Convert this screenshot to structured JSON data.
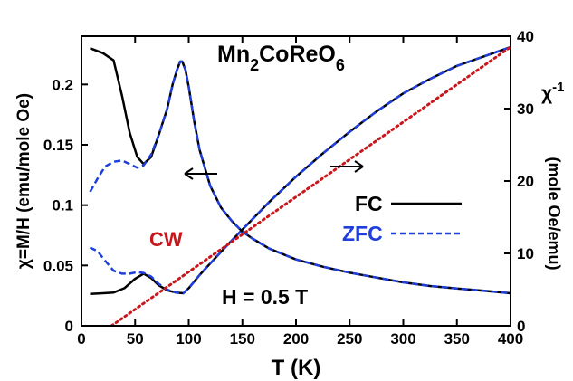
{
  "chart_data": {
    "type": "line",
    "title": "Mn",
    "title_sub1": "2",
    "title_mid": "CoReO",
    "title_sub2": "6",
    "xlabel": "T (K)",
    "ylabel_left": "χ=M/H (emu/mole Oe)",
    "ylabel_right_symbol": "χ",
    "ylabel_right_exp": "-1",
    "ylabel_right_units": "(mole Oe/emu)",
    "xlim": [
      0,
      400
    ],
    "ylim_left": [
      0,
      0.24
    ],
    "ylim_right": [
      0,
      40
    ],
    "x_ticks": [
      "0",
      "50",
      "100",
      "150",
      "200",
      "250",
      "300",
      "350",
      "400"
    ],
    "y_left_ticks": [
      "0",
      "0.05",
      "0.1",
      "0.15",
      "0.2"
    ],
    "y_right_ticks": [
      "0",
      "10",
      "20",
      "30",
      "40"
    ],
    "annotations": {
      "field": "H = 0.5 T",
      "cw": "CW"
    },
    "legend": {
      "position": "right",
      "items": [
        {
          "label": "FC",
          "color": "#000000",
          "dash": "solid"
        },
        {
          "label": "ZFC",
          "color": "#1f3fdc",
          "dash": "dashed"
        }
      ]
    },
    "series": [
      {
        "name": "FC",
        "axis": "left",
        "color": "#000000",
        "style": "solid",
        "x": [
          8,
          20,
          30,
          38,
          45,
          52,
          58,
          65,
          72,
          80,
          85,
          89,
          92,
          94,
          97,
          100,
          105,
          110,
          120,
          130,
          140,
          150,
          160,
          175,
          200,
          225,
          250,
          275,
          300,
          325,
          350,
          375,
          400
        ],
        "y": [
          0.23,
          0.226,
          0.22,
          0.19,
          0.16,
          0.14,
          0.134,
          0.14,
          0.158,
          0.18,
          0.2,
          0.212,
          0.219,
          0.219,
          0.212,
          0.198,
          0.17,
          0.146,
          0.116,
          0.098,
          0.087,
          0.078,
          0.072,
          0.064,
          0.055,
          0.049,
          0.044,
          0.04,
          0.036,
          0.033,
          0.031,
          0.029,
          0.027
        ]
      },
      {
        "name": "ZFC",
        "axis": "left",
        "color": "#1f3fdc",
        "style": "dashed",
        "x": [
          8,
          15,
          22,
          30,
          38,
          45,
          52,
          58,
          65,
          72,
          80,
          85,
          89,
          92,
          94,
          97,
          100,
          105,
          110,
          120,
          130,
          140,
          150,
          160,
          175,
          200,
          225,
          250,
          275,
          300,
          325,
          350,
          375,
          400
        ],
        "y": [
          0.111,
          0.122,
          0.132,
          0.136,
          0.137,
          0.134,
          0.131,
          0.133,
          0.142,
          0.158,
          0.18,
          0.2,
          0.212,
          0.219,
          0.219,
          0.212,
          0.198,
          0.17,
          0.146,
          0.116,
          0.098,
          0.087,
          0.078,
          0.072,
          0.064,
          0.055,
          0.049,
          0.044,
          0.04,
          0.036,
          0.033,
          0.031,
          0.029,
          0.027
        ]
      },
      {
        "name": "FC",
        "axis": "right",
        "color": "#000000",
        "style": "solid",
        "x": [
          8,
          20,
          30,
          40,
          50,
          58,
          65,
          72,
          80,
          88,
          95,
          100,
          110,
          120,
          135,
          150,
          175,
          200,
          225,
          250,
          275,
          300,
          325,
          350,
          375,
          400
        ],
        "y": [
          4.4,
          4.5,
          4.6,
          5.2,
          6.5,
          7.2,
          6.6,
          5.6,
          4.9,
          4.6,
          4.5,
          5.2,
          7.0,
          8.6,
          11.0,
          13.3,
          17.1,
          20.6,
          23.8,
          26.8,
          29.6,
          32.1,
          34.1,
          35.9,
          37.2,
          38.5
        ]
      },
      {
        "name": "ZFC",
        "axis": "right",
        "color": "#1f3fdc",
        "style": "dashed",
        "x": [
          8,
          15,
          22,
          30,
          38,
          45,
          52,
          58,
          65,
          72,
          80,
          88,
          95,
          100,
          110,
          120,
          135,
          150,
          175,
          200,
          225,
          250,
          275,
          300,
          325,
          350,
          375,
          400
        ],
        "y": [
          10.8,
          10.3,
          9.0,
          7.6,
          7.2,
          7.2,
          7.4,
          7.3,
          6.8,
          5.8,
          5.0,
          4.6,
          4.5,
          5.2,
          7.0,
          8.6,
          11.0,
          13.3,
          17.1,
          20.6,
          23.8,
          26.8,
          29.6,
          32.1,
          34.1,
          35.9,
          37.2,
          38.5
        ]
      },
      {
        "name": "CW",
        "axis": "right",
        "color": "#c8161d",
        "style": "dotted",
        "x": [
          28,
          400
        ],
        "y": [
          0,
          38.5
        ]
      }
    ]
  }
}
